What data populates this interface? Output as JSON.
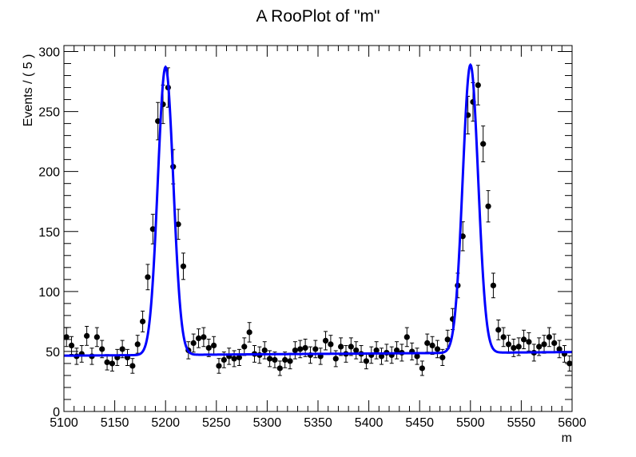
{
  "chart_data": {
    "type": "scatter",
    "title": "A RooPlot of \"m\"",
    "xlabel": "m",
    "ylabel": "Events / ( 5 )",
    "xlim": [
      5100,
      5600
    ],
    "ylim": [
      0,
      305
    ],
    "x_ticks": [
      5100,
      5150,
      5200,
      5250,
      5300,
      5350,
      5400,
      5450,
      5500,
      5550,
      5600
    ],
    "x_tick_labels": [
      "5100",
      "5150",
      "5200",
      "5250",
      "5300",
      "5350",
      "5400",
      "5450",
      "5500",
      "5550",
      "5600"
    ],
    "y_ticks": [
      0,
      50,
      100,
      150,
      200,
      250,
      300
    ],
    "y_tick_labels": [
      "0",
      "50",
      "100",
      "150",
      "200",
      "250",
      "300"
    ],
    "grid": false,
    "legend": "none",
    "colors": {
      "points": "#000000",
      "curve": "#0000ff",
      "frame": "#000000"
    },
    "series": [
      {
        "kind": "data-points-with-errors",
        "x": [
          5102.5,
          5107.5,
          5112.5,
          5117.5,
          5122.5,
          5127.5,
          5132.5,
          5137.5,
          5142.5,
          5147.5,
          5152.5,
          5157.5,
          5162.5,
          5167.5,
          5172.5,
          5177.5,
          5182.5,
          5187.5,
          5192.5,
          5197.5,
          5202.5,
          5207.5,
          5212.5,
          5217.5,
          5222.5,
          5227.5,
          5232.5,
          5237.5,
          5242.5,
          5247.5,
          5252.5,
          5257.5,
          5262.5,
          5267.5,
          5272.5,
          5277.5,
          5282.5,
          5287.5,
          5292.5,
          5297.5,
          5302.5,
          5307.5,
          5312.5,
          5317.5,
          5322.5,
          5327.5,
          5332.5,
          5337.5,
          5342.5,
          5347.5,
          5352.5,
          5357.5,
          5362.5,
          5367.5,
          5372.5,
          5377.5,
          5382.5,
          5387.5,
          5392.5,
          5397.5,
          5402.5,
          5407.5,
          5412.5,
          5417.5,
          5422.5,
          5427.5,
          5432.5,
          5437.5,
          5442.5,
          5447.5,
          5452.5,
          5457.5,
          5462.5,
          5467.5,
          5472.5,
          5477.5,
          5482.5,
          5487.5,
          5492.5,
          5497.5,
          5502.5,
          5507.5,
          5512.5,
          5517.5,
          5522.5,
          5527.5,
          5532.5,
          5537.5,
          5542.5,
          5547.5,
          5552.5,
          5557.5,
          5562.5,
          5567.5,
          5572.5,
          5577.5,
          5582.5,
          5587.5,
          5592.5,
          5597.5
        ],
        "y": [
          62,
          55,
          46,
          48,
          63,
          46,
          62,
          52,
          41,
          40,
          45,
          52,
          45,
          38,
          56,
          75,
          112,
          152,
          242,
          256,
          270,
          204,
          156,
          121,
          51,
          57,
          61,
          62,
          53,
          55,
          38,
          43,
          46,
          44,
          45,
          54,
          66,
          48,
          47,
          51,
          44,
          43,
          36,
          43,
          42,
          51,
          52,
          53,
          47,
          52,
          46,
          59,
          56,
          44,
          54,
          48,
          54,
          51,
          48,
          42,
          47,
          51,
          46,
          49,
          47,
          51,
          49,
          62,
          50,
          46,
          36,
          57,
          55,
          52,
          45,
          60,
          77,
          105,
          146,
          247,
          258,
          272,
          223,
          171,
          105,
          68,
          62,
          56,
          53,
          54,
          60,
          58,
          49,
          54,
          56,
          62,
          57,
          52,
          48,
          40
        ]
      },
      {
        "kind": "fit-curve",
        "name": "",
        "background": 48,
        "background_slope": 0.006,
        "peaks": [
          {
            "mean": 5200,
            "sigma": 7.6,
            "height": 240
          },
          {
            "mean": 5500,
            "sigma": 7.6,
            "height": 240
          }
        ]
      }
    ]
  }
}
